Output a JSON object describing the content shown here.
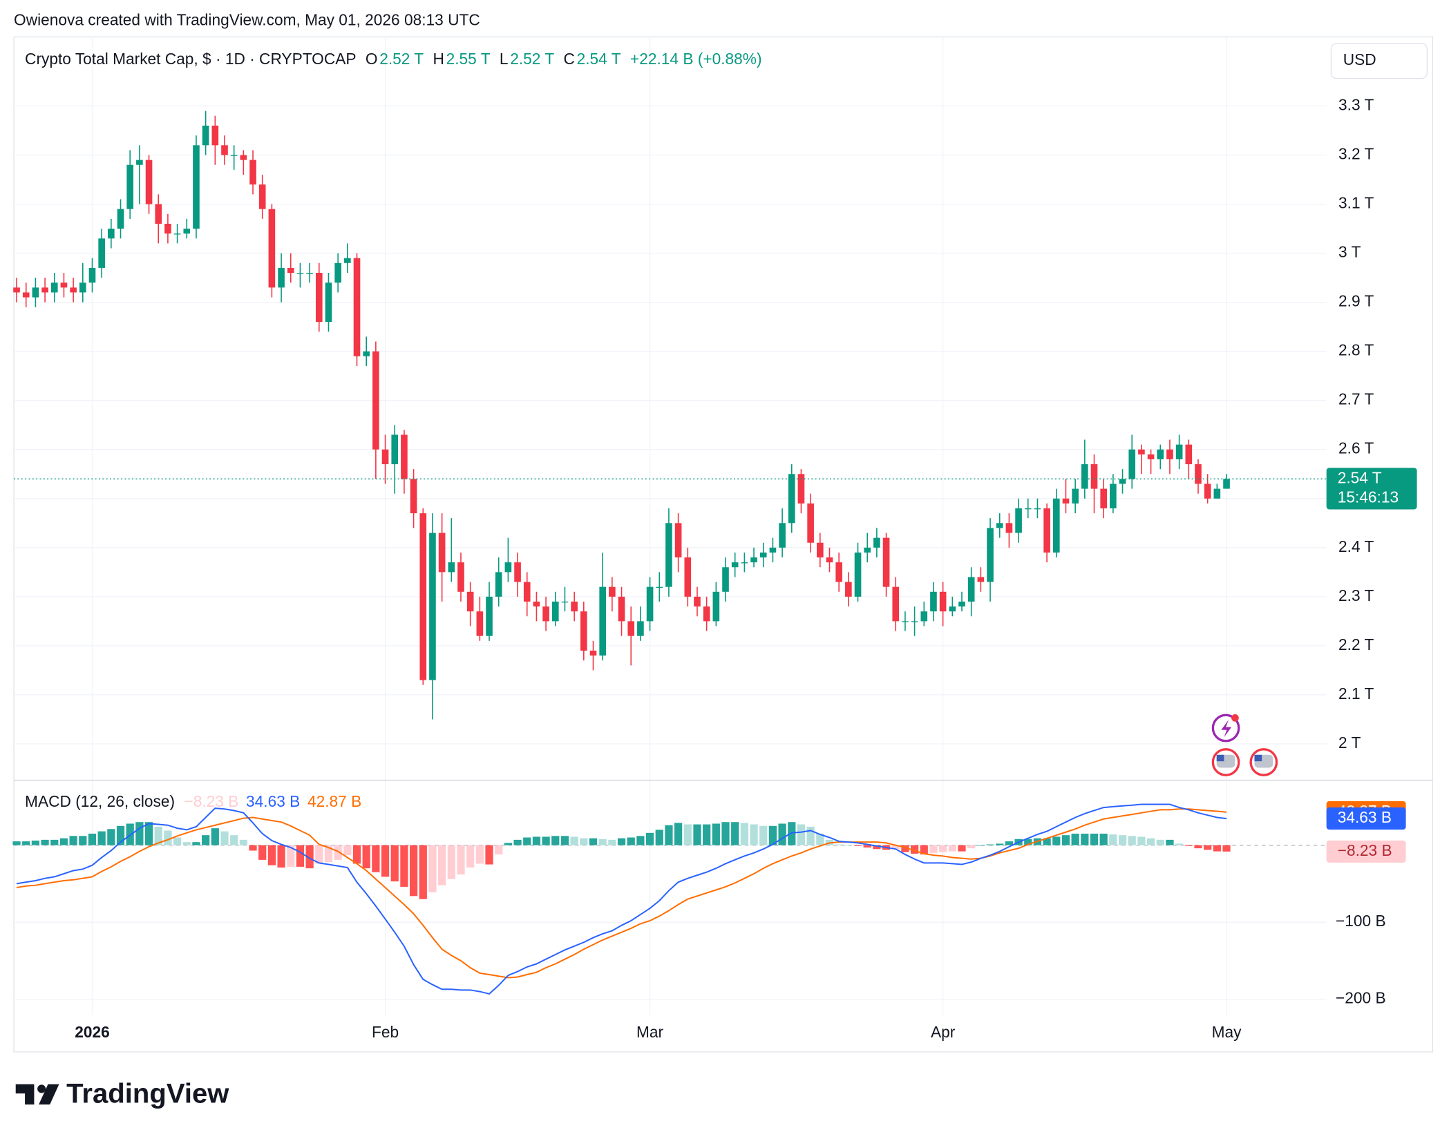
{
  "header": {
    "attribution": "Owienova created with TradingView.com, May 01, 2026 08:13 UTC",
    "logo": "TradingView"
  },
  "chart_data": [
    {
      "type": "candlestick",
      "title": "Crypto Total Market Cap, $ · 1D · CRYPTOCAP",
      "legend": [
        {
          "key": "O",
          "value": "2.52 T"
        },
        {
          "key": "H",
          "value": "2.55 T"
        },
        {
          "key": "L",
          "value": "2.52 T"
        },
        {
          "key": "C",
          "value": "2.54 T"
        }
      ],
      "change": "+22.14 B (+0.88%)",
      "currency": "USD",
      "last_price_label": "2.54 T",
      "countdown": "15:46:13",
      "up_color": "#089981",
      "down_color": "#f23645",
      "grid": true,
      "ylim": [
        1.927,
        3.437
      ],
      "yticks": [
        {
          "value": 2.0,
          "label": "2 T"
        },
        {
          "value": 2.1,
          "label": "2.1 T"
        },
        {
          "value": 2.2,
          "label": "2.2 T"
        },
        {
          "value": 2.3,
          "label": "2.3 T"
        },
        {
          "value": 2.4,
          "label": "2.4 T"
        },
        {
          "value": 2.5,
          "label": "2.5 T"
        },
        {
          "value": 2.6,
          "label": "2.6 T"
        },
        {
          "value": 2.7,
          "label": "2.7 T"
        },
        {
          "value": 2.8,
          "label": "2.8 T"
        },
        {
          "value": 2.9,
          "label": "2.9 T"
        },
        {
          "value": 3.0,
          "label": "3 T"
        },
        {
          "value": 3.1,
          "label": "3.1 T"
        },
        {
          "value": 3.2,
          "label": "3.2 T"
        },
        {
          "value": 3.3,
          "label": "3.3 T"
        }
      ],
      "categories": [
        null,
        null,
        null,
        null,
        null,
        null,
        null,
        null,
        "2026",
        null,
        null,
        null,
        null,
        null,
        null,
        null,
        null,
        null,
        null,
        null,
        null,
        null,
        null,
        null,
        null,
        null,
        null,
        null,
        null,
        null,
        null,
        null,
        null,
        null,
        null,
        null,
        null,
        null,
        null,
        "Feb",
        null,
        null,
        null,
        null,
        null,
        null,
        null,
        null,
        null,
        null,
        null,
        null,
        null,
        null,
        null,
        null,
        null,
        null,
        null,
        null,
        null,
        null,
        null,
        null,
        null,
        null,
        null,
        "Mar",
        null,
        null,
        null,
        null,
        null,
        null,
        null,
        null,
        null,
        null,
        null,
        null,
        null,
        null,
        null,
        null,
        null,
        null,
        null,
        null,
        null,
        null,
        null,
        null,
        null,
        null,
        null,
        null,
        null,
        null,
        "Apr",
        null,
        null,
        null,
        null,
        null,
        null,
        null,
        null,
        null,
        null,
        null,
        null,
        null,
        null,
        null,
        null,
        null,
        null,
        null,
        null,
        null,
        null,
        null,
        null,
        null,
        null,
        null,
        null,
        null,
        "May"
      ],
      "open": [
        2.93,
        2.92,
        2.91,
        2.93,
        2.92,
        2.94,
        2.93,
        2.92,
        2.94,
        2.97,
        3.03,
        3.05,
        3.09,
        3.18,
        3.19,
        3.1,
        3.06,
        3.04,
        3.04,
        3.05,
        3.22,
        3.26,
        3.22,
        3.2,
        3.2,
        3.19,
        3.14,
        3.09,
        2.93,
        2.97,
        2.96,
        2.96,
        2.96,
        2.86,
        2.94,
        2.98,
        2.99,
        2.79,
        2.8,
        2.6,
        2.57,
        2.63,
        2.54,
        2.47,
        2.13,
        2.43,
        2.35,
        2.37,
        2.31,
        2.27,
        2.22,
        2.3,
        2.35,
        2.37,
        2.33,
        2.29,
        2.28,
        2.25,
        2.29,
        2.29,
        2.27,
        2.19,
        2.18,
        2.32,
        2.3,
        2.25,
        2.22,
        2.25,
        2.32,
        2.32,
        2.45,
        2.38,
        2.3,
        2.28,
        2.25,
        2.31,
        2.36,
        2.37,
        2.37,
        2.38,
        2.39,
        2.4,
        2.45,
        2.55,
        2.49,
        2.41,
        2.38,
        2.37,
        2.33,
        2.3,
        2.39,
        2.4,
        2.42,
        2.32,
        2.25,
        2.25,
        2.25,
        2.27,
        2.31,
        2.27,
        2.28,
        2.29,
        2.34,
        2.33,
        2.44,
        2.45,
        2.43,
        2.48,
        2.48,
        2.48,
        2.39,
        2.5,
        2.49,
        2.52,
        2.57,
        2.52,
        2.48,
        2.53,
        2.54,
        2.6,
        2.59,
        2.58,
        2.6,
        2.58,
        2.61,
        2.57,
        2.53,
        2.5,
        2.52
      ],
      "high": [
        2.95,
        2.94,
        2.95,
        2.95,
        2.96,
        2.96,
        2.95,
        2.98,
        2.99,
        3.05,
        3.07,
        3.11,
        3.21,
        3.22,
        3.2,
        3.12,
        3.08,
        3.06,
        3.07,
        3.24,
        3.29,
        3.28,
        3.24,
        3.22,
        3.21,
        3.21,
        3.16,
        3.1,
        3.0,
        3.0,
        2.98,
        2.98,
        2.98,
        2.96,
        3.0,
        3.02,
        3.0,
        2.83,
        2.82,
        2.63,
        2.65,
        2.64,
        2.56,
        2.48,
        2.47,
        2.47,
        2.46,
        2.39,
        2.33,
        2.3,
        2.33,
        2.38,
        2.42,
        2.39,
        2.35,
        2.31,
        2.3,
        2.31,
        2.32,
        2.31,
        2.29,
        2.21,
        2.39,
        2.34,
        2.32,
        2.28,
        2.28,
        2.34,
        2.35,
        2.48,
        2.47,
        2.4,
        2.32,
        2.3,
        2.33,
        2.38,
        2.39,
        2.39,
        2.4,
        2.41,
        2.42,
        2.48,
        2.57,
        2.56,
        2.51,
        2.43,
        2.4,
        2.39,
        2.35,
        2.41,
        2.43,
        2.44,
        2.43,
        2.34,
        2.27,
        2.28,
        2.29,
        2.33,
        2.33,
        2.3,
        2.31,
        2.36,
        2.36,
        2.46,
        2.47,
        2.47,
        2.5,
        2.5,
        2.5,
        2.49,
        2.52,
        2.54,
        2.54,
        2.62,
        2.59,
        2.54,
        2.55,
        2.56,
        2.63,
        2.61,
        2.6,
        2.61,
        2.62,
        2.63,
        2.62,
        2.58,
        2.55,
        2.53,
        2.55
      ],
      "low": [
        2.9,
        2.89,
        2.89,
        2.9,
        2.9,
        2.91,
        2.9,
        2.9,
        2.92,
        2.95,
        3.01,
        3.03,
        3.07,
        3.1,
        3.08,
        3.02,
        3.02,
        3.02,
        3.03,
        3.03,
        3.2,
        3.18,
        3.18,
        3.17,
        3.16,
        3.12,
        3.07,
        2.91,
        2.9,
        2.94,
        2.93,
        2.94,
        2.84,
        2.84,
        2.92,
        2.96,
        2.77,
        2.77,
        2.54,
        2.53,
        2.51,
        2.51,
        2.44,
        2.12,
        2.05,
        2.29,
        2.33,
        2.29,
        2.24,
        2.21,
        2.21,
        2.28,
        2.33,
        2.3,
        2.26,
        2.25,
        2.23,
        2.24,
        2.27,
        2.25,
        2.17,
        2.15,
        2.17,
        2.27,
        2.22,
        2.16,
        2.21,
        2.23,
        2.29,
        2.3,
        2.35,
        2.28,
        2.26,
        2.23,
        2.24,
        2.29,
        2.34,
        2.35,
        2.36,
        2.36,
        2.37,
        2.38,
        2.43,
        2.47,
        2.39,
        2.36,
        2.35,
        2.31,
        2.28,
        2.29,
        2.37,
        2.38,
        2.3,
        2.23,
        2.23,
        2.22,
        2.24,
        2.25,
        2.24,
        2.26,
        2.27,
        2.26,
        2.31,
        2.29,
        2.42,
        2.4,
        2.41,
        2.46,
        2.46,
        2.37,
        2.38,
        2.47,
        2.47,
        2.5,
        2.47,
        2.46,
        2.47,
        2.51,
        2.52,
        2.55,
        2.55,
        2.56,
        2.55,
        2.56,
        2.54,
        2.51,
        2.49,
        2.5,
        2.52
      ],
      "close": [
        2.92,
        2.91,
        2.93,
        2.92,
        2.94,
        2.93,
        2.92,
        2.94,
        2.97,
        3.03,
        3.05,
        3.09,
        3.18,
        3.19,
        3.1,
        3.06,
        3.04,
        3.04,
        3.05,
        3.22,
        3.26,
        3.22,
        3.2,
        3.2,
        3.19,
        3.14,
        3.09,
        2.93,
        2.97,
        2.96,
        2.96,
        2.96,
        2.86,
        2.94,
        2.98,
        2.99,
        2.79,
        2.8,
        2.6,
        2.57,
        2.63,
        2.54,
        2.47,
        2.13,
        2.43,
        2.35,
        2.37,
        2.31,
        2.27,
        2.22,
        2.3,
        2.35,
        2.37,
        2.33,
        2.29,
        2.28,
        2.25,
        2.29,
        2.29,
        2.27,
        2.19,
        2.18,
        2.32,
        2.3,
        2.25,
        2.22,
        2.25,
        2.32,
        2.32,
        2.45,
        2.38,
        2.3,
        2.28,
        2.25,
        2.31,
        2.36,
        2.37,
        2.37,
        2.38,
        2.39,
        2.4,
        2.45,
        2.55,
        2.49,
        2.41,
        2.38,
        2.37,
        2.33,
        2.3,
        2.39,
        2.4,
        2.42,
        2.32,
        2.25,
        2.25,
        2.25,
        2.27,
        2.31,
        2.27,
        2.28,
        2.29,
        2.34,
        2.33,
        2.44,
        2.45,
        2.43,
        2.48,
        2.48,
        2.48,
        2.39,
        2.5,
        2.49,
        2.52,
        2.57,
        2.52,
        2.48,
        2.53,
        2.54,
        2.6,
        2.59,
        2.58,
        2.6,
        2.58,
        2.61,
        2.57,
        2.53,
        2.5,
        2.52,
        2.54
      ]
    },
    {
      "type": "macd",
      "title": "MACD (12, 26, close)",
      "ylim": [
        -220.4,
        83.8
      ],
      "yticks": [
        {
          "value": -100,
          "label": "−100 B"
        },
        {
          "value": -200,
          "label": "−200 B"
        }
      ],
      "histogram": {
        "last_label": "−8.23 B",
        "colors": [
          "#26a69a",
          "#b2dfdb",
          "#ff5252",
          "#ffcdd2"
        ],
        "values": [
          5,
          5,
          6,
          7,
          7,
          9,
          12,
          12,
          15,
          18,
          21,
          25,
          28,
          30,
          30,
          24,
          19,
          10,
          4,
          4,
          13,
          22,
          18,
          13,
          7,
          -7,
          -19,
          -26,
          -29,
          -28,
          -28,
          -30,
          -24,
          -22,
          -19,
          -13,
          -24,
          -30,
          -35,
          -41,
          -47,
          -54,
          -66,
          -70,
          -61,
          -52,
          -44,
          -38,
          -29,
          -24,
          -25,
          -12,
          3,
          7,
          10,
          11,
          11,
          12,
          12,
          11,
          9,
          9,
          8,
          7,
          9,
          10,
          12,
          16,
          20,
          26,
          29,
          27,
          27,
          27,
          28,
          30,
          30,
          29,
          27,
          25,
          25,
          28,
          30,
          27,
          24,
          15,
          7,
          1,
          0,
          -1,
          -3,
          -5,
          -6,
          -5,
          -9,
          -11,
          -12,
          -10,
          -9,
          -8,
          -8,
          -4,
          0,
          1,
          2,
          5,
          8,
          8,
          9,
          9,
          11,
          13,
          15,
          15,
          15,
          15,
          14,
          13,
          12,
          11,
          9,
          7,
          7,
          2,
          -1,
          -4,
          -6,
          -8,
          -8.23
        ]
      },
      "macd": {
        "color": "#2962ff",
        "last_label": "34.63 B",
        "values": [
          -50,
          -48,
          -46,
          -43,
          -41,
          -37,
          -33,
          -31,
          -26,
          -16,
          -7,
          4,
          13,
          22,
          28,
          27,
          26,
          22,
          20,
          24,
          36,
          48,
          47,
          45,
          42,
          29,
          15,
          6,
          1,
          -3,
          -9,
          -17,
          -23,
          -25,
          -27,
          -29,
          -48,
          -63,
          -79,
          -96,
          -113,
          -131,
          -155,
          -174,
          -181,
          -187,
          -187,
          -188,
          -188,
          -190,
          -193,
          -182,
          -169,
          -164,
          -158,
          -154,
          -148,
          -142,
          -136,
          -131,
          -126,
          -120,
          -115,
          -111,
          -104,
          -98,
          -90,
          -82,
          -72,
          -59,
          -48,
          -43,
          -39,
          -35,
          -30,
          -24,
          -19,
          -14,
          -10,
          -5,
          1,
          9,
          16,
          17,
          19,
          14,
          10,
          5,
          4,
          3,
          1,
          -1,
          -3,
          -5,
          -12,
          -18,
          -23,
          -23,
          -23,
          -24,
          -25,
          -22,
          -17,
          -13,
          -8,
          -2,
          4,
          9,
          14,
          18,
          24,
          30,
          36,
          41,
          45,
          49,
          50,
          51,
          52,
          53,
          53,
          53,
          53,
          49,
          46,
          42,
          39,
          36,
          34.63
        ]
      },
      "signal": {
        "color": "#ff6d00",
        "last_label": "42.87 B",
        "values": [
          -55,
          -53,
          -52,
          -50,
          -48,
          -46,
          -45,
          -43,
          -41,
          -34,
          -28,
          -21,
          -15,
          -8,
          -2,
          3,
          7,
          12,
          16,
          20,
          23,
          26,
          29,
          32,
          35,
          36,
          34,
          32,
          30,
          25,
          19,
          13,
          1,
          -3,
          -8,
          -16,
          -24,
          -33,
          -44,
          -55,
          -66,
          -77,
          -89,
          -104,
          -120,
          -135,
          -143,
          -150,
          -159,
          -166,
          -168,
          -170,
          -172,
          -171,
          -168,
          -165,
          -159,
          -154,
          -148,
          -142,
          -135,
          -129,
          -123,
          -118,
          -113,
          -108,
          -102,
          -98,
          -92,
          -85,
          -77,
          -70,
          -66,
          -62,
          -58,
          -54,
          -49,
          -43,
          -37,
          -30,
          -24,
          -19,
          -14,
          -10,
          -5,
          -1,
          3,
          4,
          4,
          4,
          4,
          4,
          3,
          0,
          -3,
          -7,
          -11,
          -13,
          -14,
          -16,
          -17,
          -18,
          -17,
          -14,
          -10,
          -7,
          -4,
          1,
          5,
          9,
          13,
          17,
          21,
          26,
          30,
          34,
          36,
          38,
          40,
          42,
          44,
          46,
          46,
          47,
          47,
          46,
          45,
          44,
          42.87
        ]
      }
    }
  ]
}
